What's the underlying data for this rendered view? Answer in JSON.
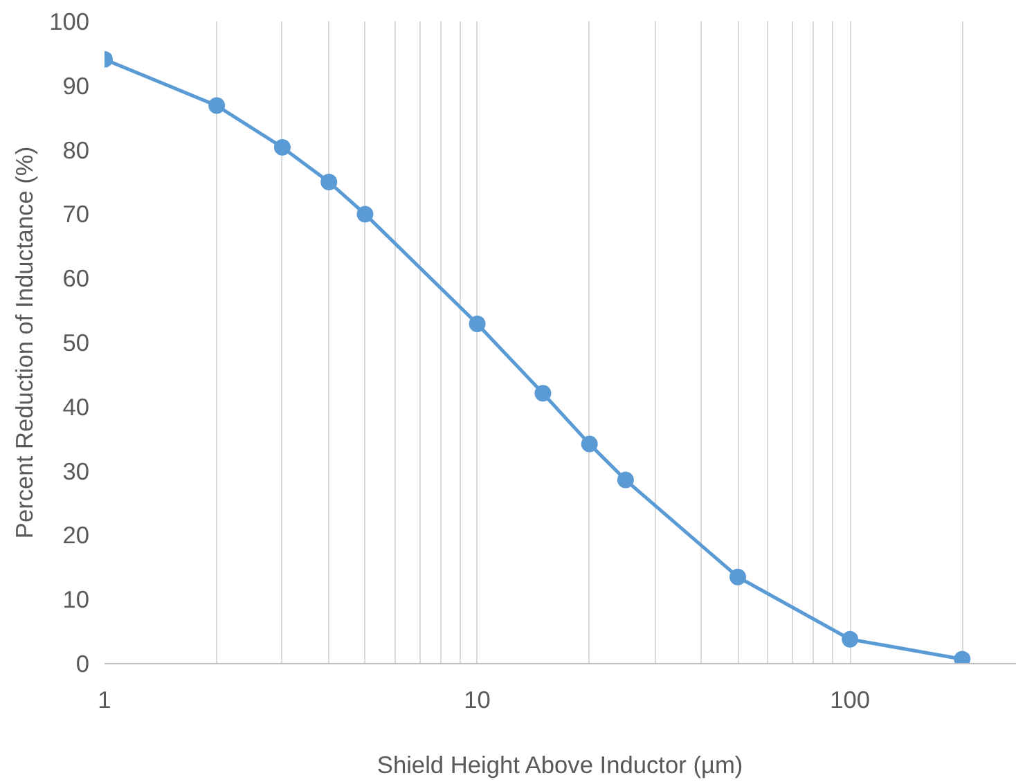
{
  "chart_data": {
    "type": "line",
    "xlabel": "Shield Height Above Inductor (µm)",
    "ylabel": "Percent Reduction of Inductance (%)",
    "x": [
      1,
      2,
      3,
      4,
      5,
      10,
      15,
      20,
      25,
      50,
      100,
      200
    ],
    "series": [
      {
        "color": "#5b9bd5",
        "values": [
          94.1,
          86.9,
          80.4,
          75.0,
          70.0,
          52.9,
          42.1,
          34.2,
          28.6,
          13.5,
          3.8,
          0.7
        ]
      }
    ],
    "log": "x",
    "xlim": [
      1,
      280
    ],
    "ylim": [
      0,
      100
    ],
    "xticks": [
      1,
      {
        "value": 2,
        "label": null
      },
      {
        "value": 3,
        "label": null
      },
      {
        "value": 4,
        "label": null
      },
      {
        "value": 5,
        "label": null
      },
      {
        "value": 6,
        "label": null
      },
      {
        "value": 7,
        "label": null
      },
      {
        "value": 8,
        "label": null
      },
      {
        "value": 9,
        "label": null
      },
      10,
      {
        "value": 20,
        "label": null
      },
      {
        "value": 30,
        "label": null
      },
      {
        "value": 40,
        "label": null
      },
      {
        "value": 50,
        "label": null
      },
      {
        "value": 60,
        "label": null
      },
      {
        "value": 70,
        "label": null
      },
      {
        "value": 80,
        "label": null
      },
      {
        "value": 90,
        "label": null
      },
      100,
      {
        "value": 200,
        "label": null
      }
    ],
    "yticks": [
      0,
      10,
      20,
      30,
      40,
      50,
      60,
      70,
      80,
      90,
      100
    ],
    "grid": "x",
    "marker": "circle",
    "line_style": "solid"
  }
}
